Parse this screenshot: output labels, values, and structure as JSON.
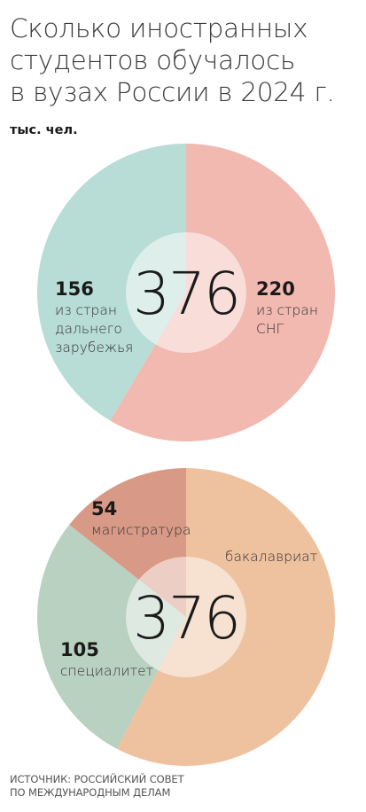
{
  "header": {
    "title_lines": [
      "Сколько иностранных",
      "студентов обучалось",
      "в вузах России в 2024 г."
    ],
    "unit": "тыс. чел."
  },
  "footer": {
    "source_lines": [
      "ИСТОЧНИК: РОССИЙСКИЙ СОВЕТ",
      "ПО МЕЖДУНАРОДНЫМ ДЕЛАМ"
    ]
  },
  "colors": {
    "cis": "#f1b9b0",
    "far_abroad": "#b8dcd6",
    "bachelor": "#eec19f",
    "specialist": "#b9d1c0",
    "master": "#d89a87"
  },
  "chart_data": [
    {
      "type": "pie",
      "total": "376",
      "slices": [
        {
          "value": 220,
          "label": "220",
          "desc_lines": [
            "из стран",
            "СНГ"
          ],
          "color": "#f1b9b0"
        },
        {
          "value": 156,
          "label": "156",
          "desc_lines": [
            "из стран",
            "дальнего",
            "зарубежья"
          ],
          "color": "#b8dcd6"
        }
      ]
    },
    {
      "type": "pie",
      "total": "376",
      "slices": [
        {
          "value": 217,
          "label": "",
          "desc_lines": [
            "бакалавриат"
          ],
          "color": "#eec19f"
        },
        {
          "value": 105,
          "label": "105",
          "desc_lines": [
            "специалитет"
          ],
          "color": "#b9d1c0"
        },
        {
          "value": 54,
          "label": "54",
          "desc_lines": [
            "магистратура"
          ],
          "color": "#d89a87"
        }
      ]
    }
  ]
}
